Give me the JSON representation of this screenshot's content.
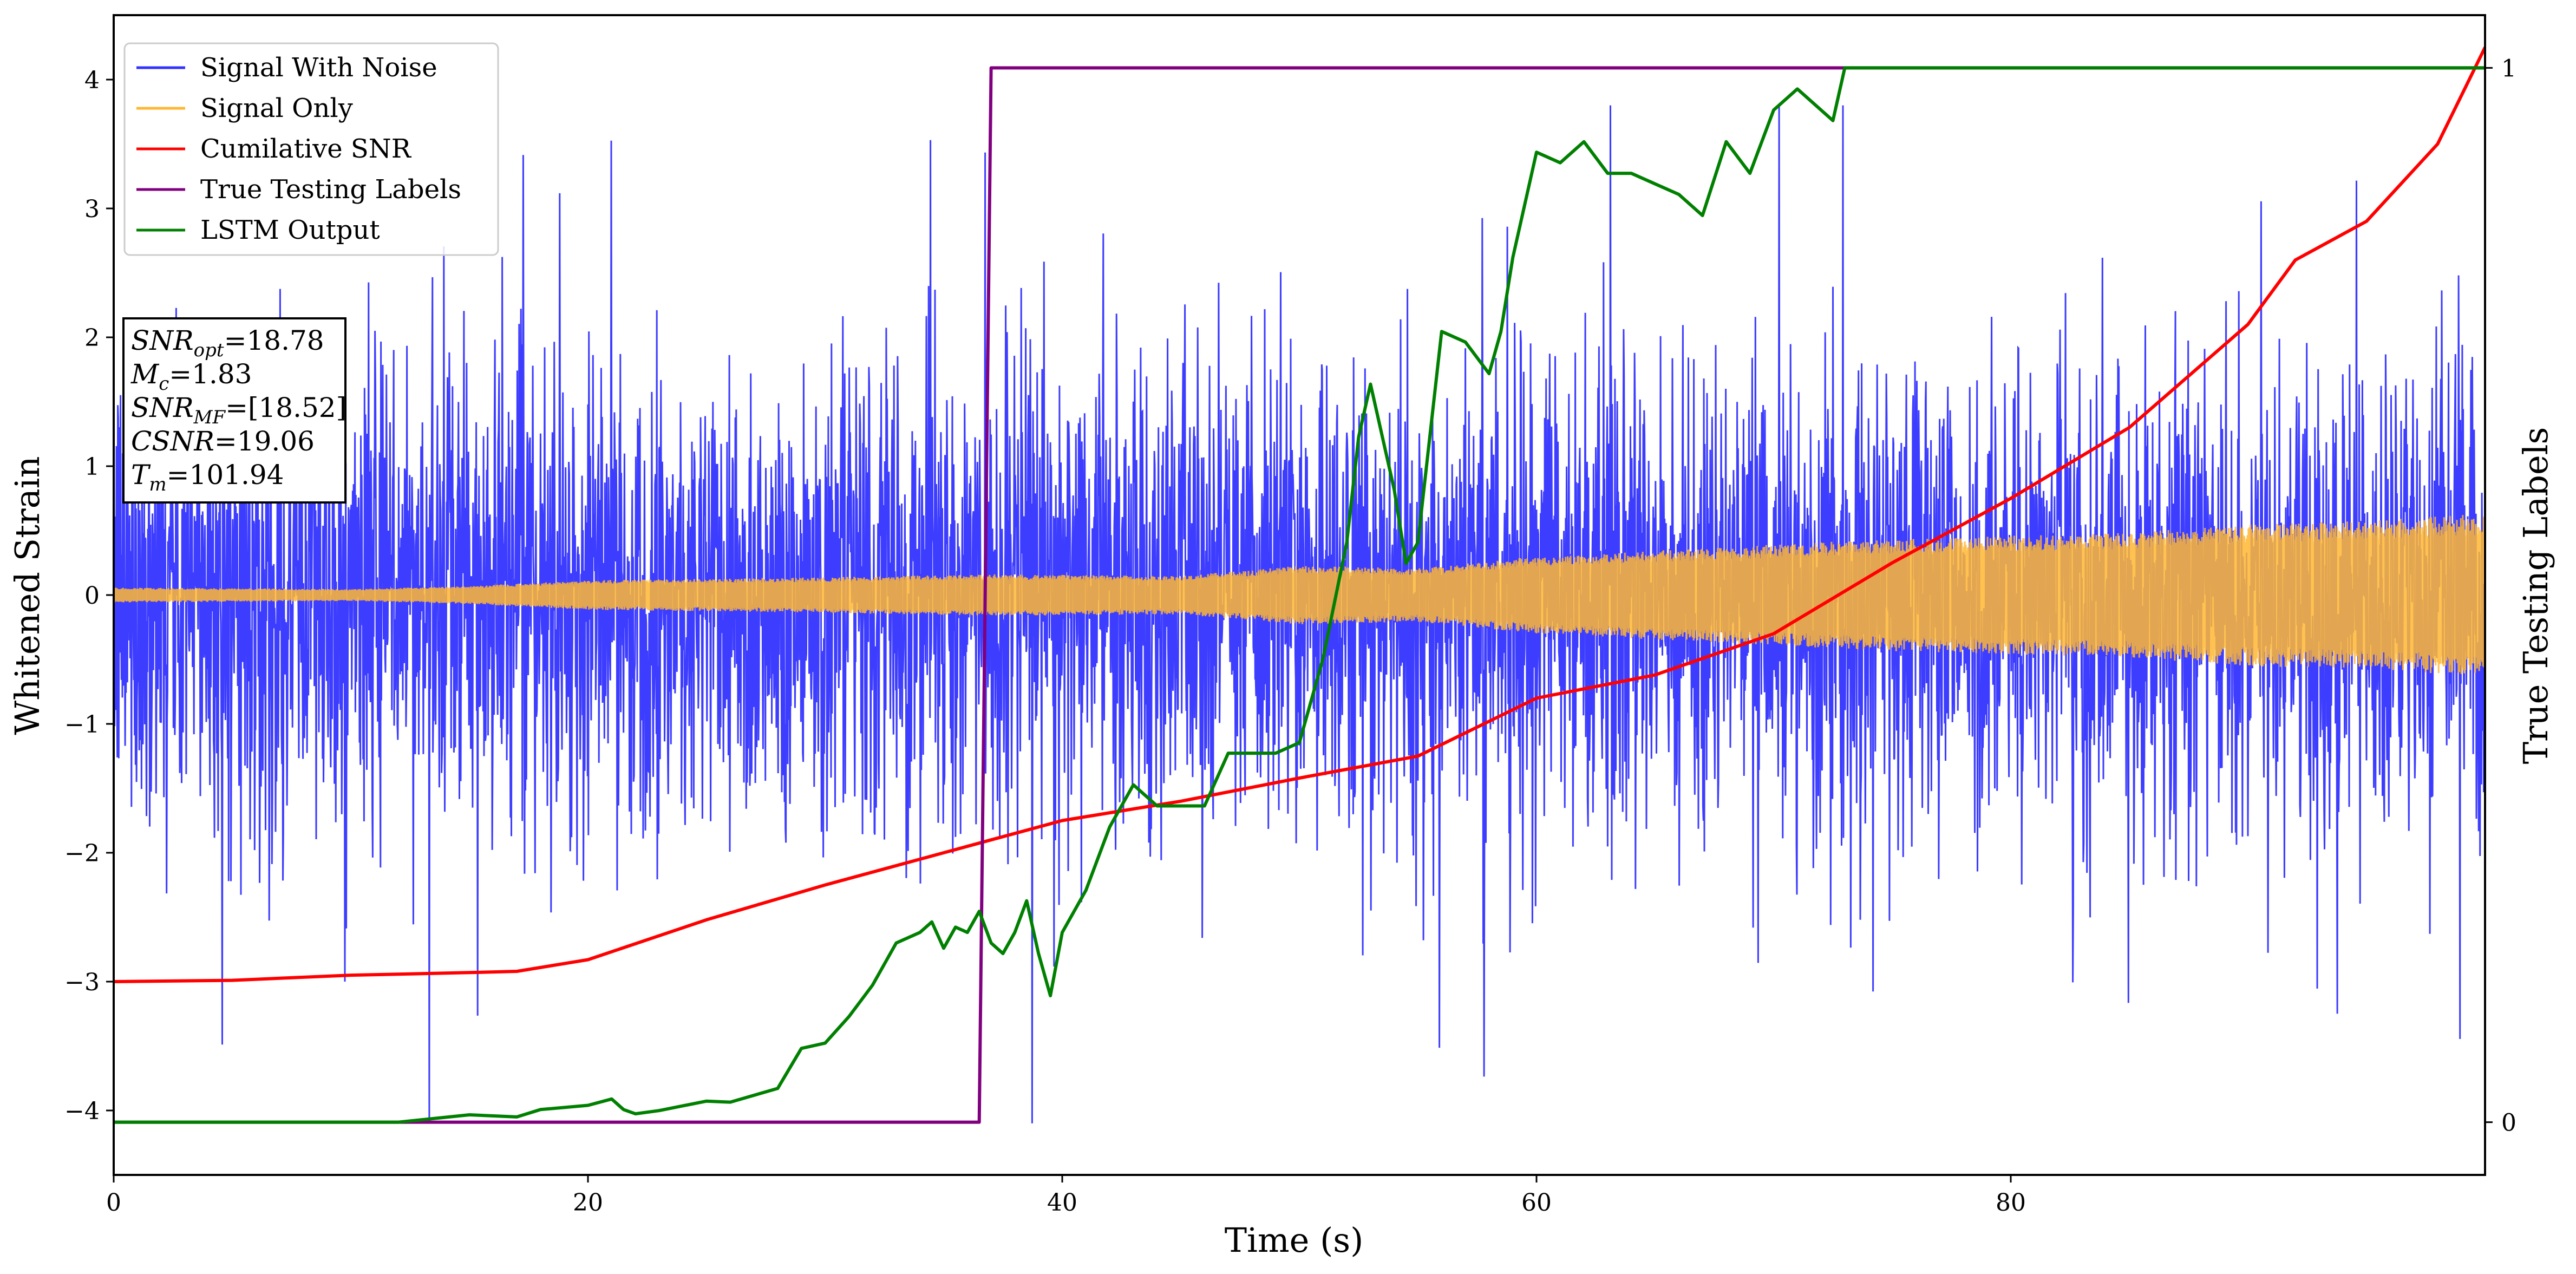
{
  "chart_data": {
    "type": "line",
    "title": "",
    "xlabel": "Time (s)",
    "ylabel": "Whitened Strain",
    "y2label": "True Testing Labels",
    "xlim": [
      0,
      100
    ],
    "ylim": [
      -4.5,
      4.5
    ],
    "y2lim": [
      -0.05,
      1.05
    ],
    "xticks": [
      0,
      20,
      40,
      60,
      80
    ],
    "yticks": [
      -4,
      -3,
      -2,
      -1,
      0,
      1,
      2,
      3,
      4
    ],
    "y2ticks": [
      0,
      1
    ],
    "grid": false,
    "legend_position": "top-left",
    "series": [
      {
        "name": "Signal With Noise",
        "axis": "left",
        "color": "#3333ff",
        "kind": "noise",
        "typical_amplitude": 1.0,
        "peak_range": [
          -4.1,
          3.8
        ]
      },
      {
        "name": "Signal Only",
        "axis": "left",
        "color": "#ffb733",
        "kind": "chirp_envelope",
        "envelope": {
          "x": [
            0,
            10,
            15,
            20,
            30,
            37,
            45,
            50,
            55,
            60,
            65,
            70,
            75,
            80,
            85,
            90,
            95,
            100
          ],
          "y": [
            0.05,
            0.04,
            0.06,
            0.1,
            0.12,
            0.14,
            0.13,
            0.2,
            0.18,
            0.26,
            0.3,
            0.34,
            0.38,
            0.4,
            0.42,
            0.48,
            0.5,
            0.55
          ]
        }
      },
      {
        "name": "Cumilative SNR",
        "axis": "left",
        "color": "#ff0000",
        "x": [
          0,
          5,
          10,
          15,
          17,
          20,
          25,
          30,
          35,
          37,
          40,
          45,
          50,
          55,
          60,
          65,
          70,
          75,
          80,
          85,
          90,
          92,
          95,
          98,
          100
        ],
        "y": [
          -3.0,
          -2.99,
          -2.95,
          -2.93,
          -2.92,
          -2.83,
          -2.52,
          -2.25,
          -2.0,
          -1.9,
          -1.75,
          -1.6,
          -1.42,
          -1.25,
          -0.8,
          -0.62,
          -0.3,
          0.25,
          0.75,
          1.3,
          2.1,
          2.6,
          2.9,
          3.5,
          4.25
        ]
      },
      {
        "name": "True Testing Labels",
        "axis": "right",
        "color": "#800080",
        "x": [
          0,
          36.5,
          37.0,
          100
        ],
        "y": [
          0,
          0,
          1,
          1
        ]
      },
      {
        "name": "LSTM Output",
        "axis": "right",
        "color": "#008000",
        "x": [
          0,
          12,
          15,
          17,
          18,
          20,
          21,
          21.5,
          22,
          23,
          25,
          26,
          28,
          29,
          30,
          31,
          32,
          33,
          34,
          34.5,
          35,
          35.5,
          36,
          36.5,
          37,
          37.5,
          38,
          38.5,
          39,
          39.5,
          40,
          41,
          42,
          43,
          44,
          45,
          46,
          47,
          48,
          49,
          50,
          51,
          52,
          52.5,
          53,
          54,
          54.5,
          55,
          56,
          57,
          58,
          58.5,
          59,
          60,
          61,
          62,
          63,
          64,
          65,
          66,
          67,
          68,
          69,
          70,
          71,
          72,
          72.5,
          73,
          75,
          80,
          100
        ],
        "y": [
          0,
          0,
          0.007,
          0.005,
          0.012,
          0.016,
          0.022,
          0.012,
          0.008,
          0.011,
          0.02,
          0.019,
          0.032,
          0.07,
          0.075,
          0.1,
          0.13,
          0.17,
          0.18,
          0.19,
          0.165,
          0.185,
          0.18,
          0.2,
          0.17,
          0.16,
          0.18,
          0.21,
          0.16,
          0.12,
          0.18,
          0.22,
          0.28,
          0.32,
          0.3,
          0.3,
          0.3,
          0.35,
          0.35,
          0.35,
          0.36,
          0.44,
          0.55,
          0.65,
          0.7,
          0.6,
          0.53,
          0.55,
          0.75,
          0.74,
          0.71,
          0.75,
          0.82,
          0.92,
          0.91,
          0.93,
          0.9,
          0.9,
          0.89,
          0.88,
          0.86,
          0.93,
          0.9,
          0.96,
          0.98,
          0.96,
          0.95,
          1.0,
          1.0,
          1.0,
          1.0
        ]
      }
    ],
    "annotation_lines": [
      {
        "label": "SNR",
        "sub": "opt",
        "value": "=18.78"
      },
      {
        "label": "M",
        "sub": "c",
        "value": "=1.83"
      },
      {
        "label": "SNR",
        "sub": "MF",
        "value": "=[18.52]"
      },
      {
        "label": "CSNR",
        "sub": "",
        "value": "=19.06"
      },
      {
        "label": "T",
        "sub": "m",
        "value": "=101.94"
      }
    ]
  }
}
